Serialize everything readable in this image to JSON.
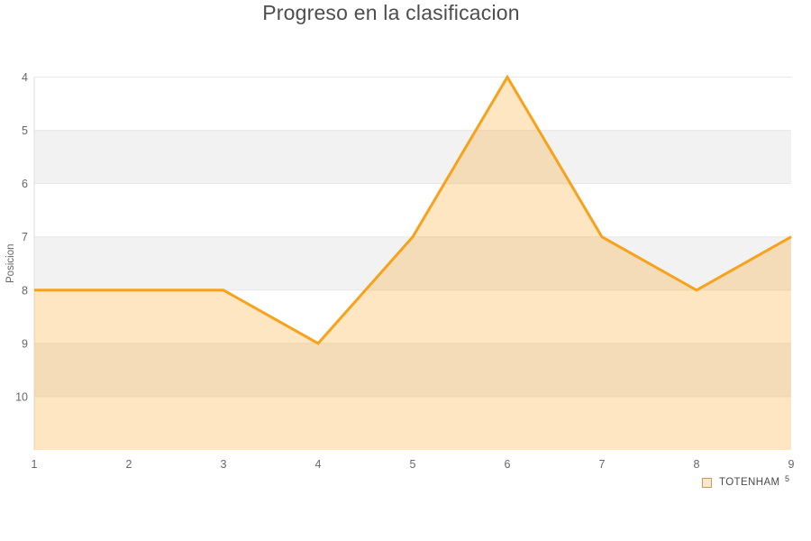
{
  "chart_data": {
    "type": "area",
    "title": "Progreso en la clasificacion",
    "xlabel": "",
    "ylabel": "Posicion",
    "x": [
      1,
      2,
      3,
      4,
      5,
      6,
      7,
      8,
      9
    ],
    "series": [
      {
        "name": "TOTENHAM",
        "values": [
          8,
          8,
          8,
          9,
          7,
          4,
          7,
          8,
          7
        ]
      }
    ],
    "y_axis": {
      "reversed": true,
      "min": 4,
      "max": 11,
      "ticks": [
        4,
        5,
        6,
        7,
        8,
        9,
        10
      ]
    },
    "x_axis": {
      "min": 1,
      "max": 9,
      "ticks": [
        1,
        2,
        3,
        4,
        5,
        6,
        7,
        8,
        9
      ]
    },
    "grid": true,
    "alternating_bands": true,
    "legend_position": "bottom-right"
  },
  "legend": {
    "label": "TOTENHAM",
    "footnote": "5"
  },
  "colors": {
    "line": "#f7a21a",
    "area_fill": "#f7a21a",
    "area_fill_opacity": "0.27",
    "band": "#f2f2f2",
    "gridline": "#e7e7e7",
    "axis_line": "#dddddd",
    "axis_text": "#666666",
    "title_text": "#4d4d4d",
    "legend_text": "#4a4a4a",
    "legend_swatch_fill": "#fbe8c9",
    "legend_swatch_border": "#c89a5c"
  }
}
